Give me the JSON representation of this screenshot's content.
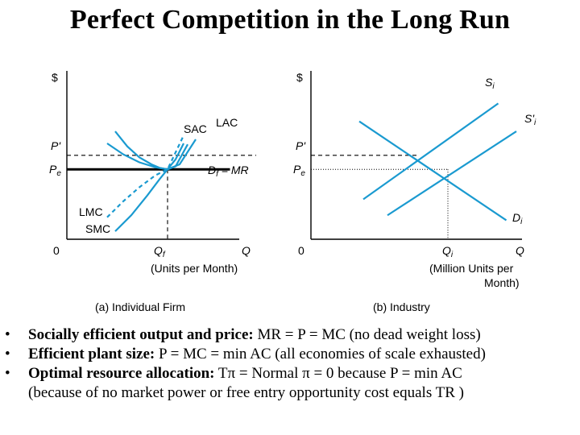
{
  "title": "Perfect Competition in the Long Run",
  "chart_data": [
    {
      "type": "line",
      "panel": "(a) Individual Firm",
      "ylabel": "$",
      "xlabel": "(Units per Month)",
      "x_axis_end_label": "Q",
      "origin_label": "0",
      "y_ticks": [
        {
          "label": "P'",
          "value": 84
        },
        {
          "label": "Pe",
          "label_main": "P",
          "label_sub": "e",
          "value": 70
        }
      ],
      "x_ticks": [
        {
          "label": "Qf",
          "label_main": "Q",
          "label_sub": "f",
          "value": 50
        }
      ],
      "curve_labels": {
        "sac": "SAC",
        "lac": "LAC",
        "lmc": "LMC",
        "smc": "SMC",
        "demand_main": "D",
        "demand_sub": "f",
        "demand_rest": " = MR"
      },
      "xlim": [
        0,
        100
      ],
      "ylim": [
        0,
        100
      ],
      "series": [
        {
          "name": "LAC",
          "x": [
            24,
            30,
            36,
            42,
            46,
            50,
            56,
            64
          ],
          "y": [
            108,
            93,
            82,
            75,
            71.5,
            70,
            75,
            100
          ]
        },
        {
          "name": "SAC",
          "x": [
            20,
            28,
            36,
            44,
            50,
            54,
            60
          ],
          "y": [
            96,
            85,
            77,
            72,
            70,
            73,
            95
          ]
        },
        {
          "name": "LMC",
          "x": [
            20,
            28,
            36,
            44,
            50,
            58
          ],
          "y": [
            22,
            38,
            52,
            64,
            70,
            104
          ]
        },
        {
          "name": "SMC",
          "x": [
            24,
            32,
            40,
            46,
            50,
            54,
            58
          ],
          "y": [
            8,
            24,
            44,
            60,
            70,
            80,
            96
          ]
        },
        {
          "name": "Df = MR",
          "x": [
            0,
            81
          ],
          "y": [
            70,
            70
          ]
        }
      ]
    },
    {
      "type": "line",
      "panel": "(b) Industry",
      "ylabel": "$",
      "xlabel": "(Million Units per Month)",
      "x_axis_end_label": "Q",
      "origin_label": "0",
      "y_ticks": [
        {
          "label": "P'",
          "value": 84
        },
        {
          "label": "Pe",
          "label_main": "P",
          "label_sub": "e",
          "value": 70
        }
      ],
      "x_ticks": [
        {
          "label": "Qi",
          "label_main": "Q",
          "label_sub": "i",
          "value": 68
        }
      ],
      "curve_labels": {
        "s_main": "S",
        "s_sub": "i",
        "s2_main": "S'",
        "s2_sub": "i",
        "d_main": "D",
        "d_sub": "i"
      },
      "xlim": [
        0,
        100
      ],
      "ylim": [
        0,
        100
      ],
      "series": [
        {
          "name": "Si",
          "x": [
            26,
            93
          ],
          "y": [
            40,
            136
          ]
        },
        {
          "name": "S'i",
          "x": [
            38,
            102
          ],
          "y": [
            24,
            108
          ]
        },
        {
          "name": "Di",
          "x": [
            24,
            97
          ],
          "y": [
            118,
            19
          ]
        }
      ]
    }
  ],
  "bullets": [
    {
      "bold": "Socially efficient output and price:",
      "text": " MR = P = MC (no dead weight loss)"
    },
    {
      "bold": "Efficient plant size:",
      "text": " P = MC = min AC (all economies of scale exhausted)"
    },
    {
      "bold": "Optimal resource allocation:",
      "text": " Tπ = Normal π = 0 because P = min AC",
      "text2": "(because of no market power or free entry opportunity cost equals TR )"
    }
  ],
  "bullet_symbol": "•"
}
